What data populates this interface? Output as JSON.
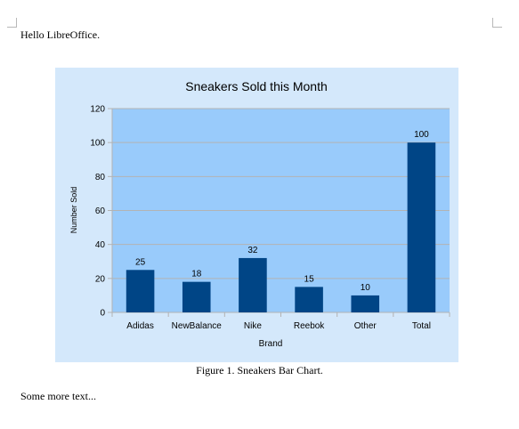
{
  "document": {
    "paragraph_1": "Hello LibreOffice.",
    "caption": "Figure 1. Sneakers Bar Chart.",
    "paragraph_2": "Some more text..."
  },
  "colors": {
    "chart_background": "#d4e8fb",
    "plot_background": "#99cbfb",
    "bar_fill": "#004586",
    "gridline": "#b3b3b3",
    "axis": "#b3b3b3",
    "text": "#000000"
  },
  "chart_data": {
    "type": "bar",
    "title": "Sneakers Sold this Month",
    "xlabel": "Brand",
    "ylabel": "Number Sold",
    "categories": [
      "Adidas",
      "NewBalance",
      "Nike",
      "Reebok",
      "Other",
      "Total"
    ],
    "values": [
      25,
      18,
      32,
      15,
      10,
      100
    ],
    "data_labels": [
      "25",
      "18",
      "32",
      "15",
      "10",
      "100"
    ],
    "ylim": [
      0,
      120
    ],
    "yticks": [
      "0",
      "20",
      "40",
      "60",
      "80",
      "100",
      "120"
    ],
    "grid": true,
    "legend": "none"
  }
}
